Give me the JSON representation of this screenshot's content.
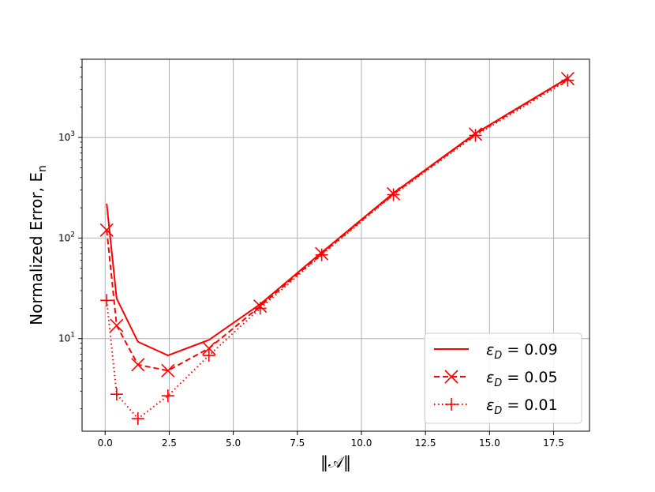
{
  "chart_data": {
    "type": "line",
    "xlabel": "‖𝒜‖",
    "ylabel": "Normalized Error, E",
    "ylabel_subscript": "n",
    "xlim": [
      -0.9,
      18.9
    ],
    "ylim": [
      1.2,
      6000
    ],
    "yscale": "log",
    "grid": true,
    "legend_position": "lower-right",
    "x_ticks": [
      0.0,
      2.5,
      5.0,
      7.5,
      10.0,
      12.5,
      15.0,
      17.5
    ],
    "x_tick_labels": [
      "0.0",
      "2.5",
      "5.0",
      "7.5",
      "10.0",
      "12.5",
      "15.0",
      "17.5"
    ],
    "y_ticks": [
      10,
      100,
      1000
    ],
    "y_tick_labels": [
      {
        "base": "10",
        "exp": "1"
      },
      {
        "base": "10",
        "exp": "2"
      },
      {
        "base": "10",
        "exp": "3"
      }
    ],
    "color": "#ff0000",
    "series": [
      {
        "name": "ε_D = 0.09",
        "legend_label": {
          "eps": "ε",
          "sub": "D",
          "rest": " = 0.09"
        },
        "style": "solid",
        "marker": "none",
        "x": [
          0.06,
          0.45,
          1.28,
          2.45,
          4.05,
          6.05,
          8.45,
          11.25,
          14.45,
          18.05
        ],
        "y": [
          220,
          25,
          9.3,
          6.8,
          9.7,
          22,
          72,
          280,
          1100,
          3900
        ]
      },
      {
        "name": "ε_D = 0.05",
        "legend_label": {
          "eps": "ε",
          "sub": "D",
          "rest": " = 0.05"
        },
        "style": "dashed",
        "marker": "x",
        "x": [
          0.06,
          0.45,
          1.28,
          2.45,
          4.05,
          6.05,
          8.45,
          11.25,
          14.45,
          18.05
        ],
        "y": [
          120,
          13.5,
          5.5,
          4.8,
          8.0,
          21,
          70,
          275,
          1080,
          3850
        ]
      },
      {
        "name": "ε_D = 0.01",
        "legend_label": {
          "eps": "ε",
          "sub": "D",
          "rest": " = 0.01"
        },
        "style": "dotted",
        "marker": "+",
        "x": [
          0.06,
          0.45,
          1.28,
          2.45,
          4.05,
          6.05,
          8.45,
          11.25,
          14.45,
          18.05
        ],
        "y": [
          24,
          2.8,
          1.6,
          2.7,
          6.8,
          20,
          68,
          270,
          1050,
          3700
        ]
      }
    ]
  }
}
